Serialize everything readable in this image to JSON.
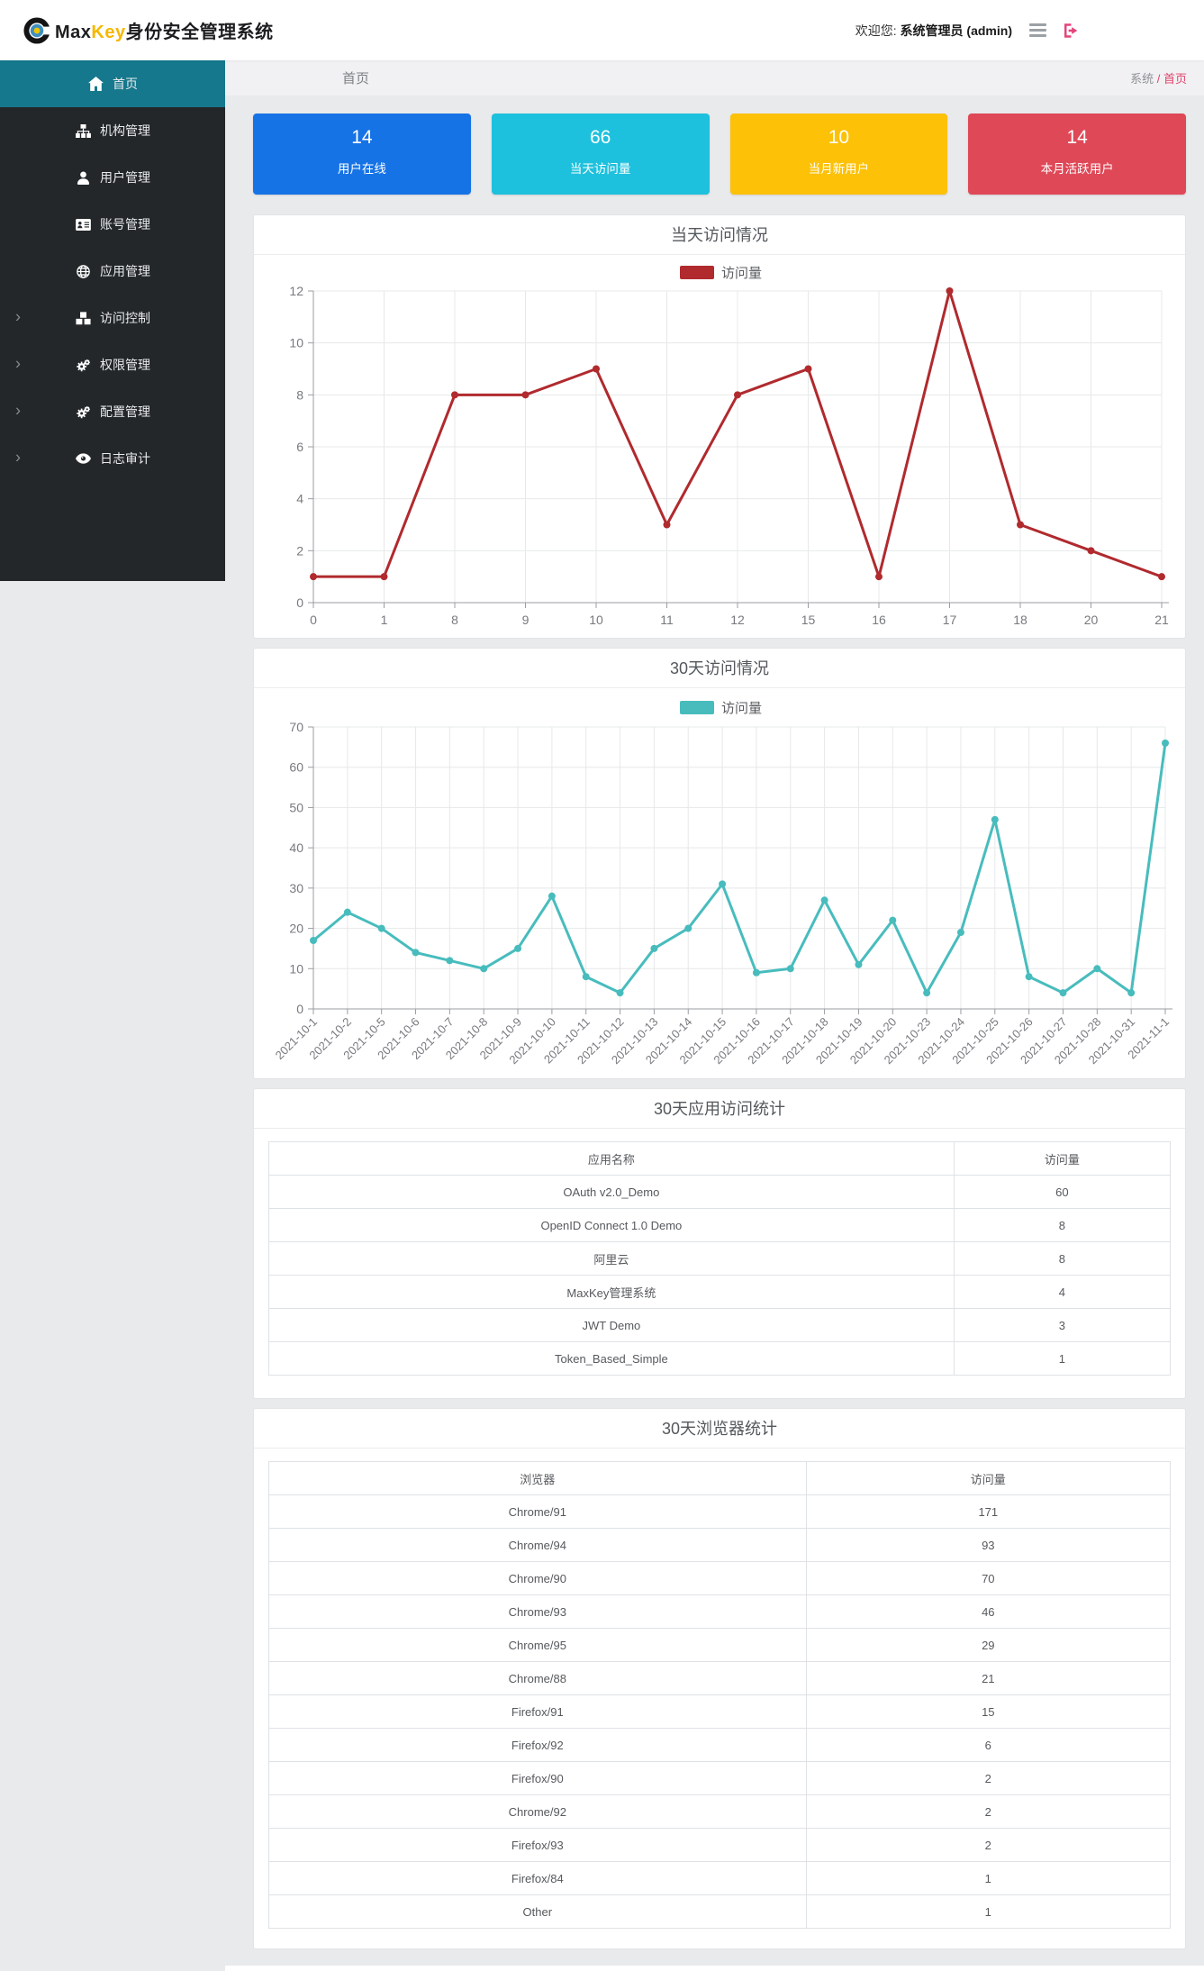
{
  "header": {
    "brand": {
      "part1": "Max",
      "part2": "Key",
      "part3": "身份安全管理系统"
    },
    "welcome_label": "欢迎您:",
    "user": "系统管理员 (admin)"
  },
  "breadcrumb": {
    "page_title": "首页",
    "crumb_root": "系统",
    "crumb_separator": "/",
    "crumb_current": "首页"
  },
  "sidebar": {
    "items": [
      {
        "id": "home",
        "label": "首页",
        "icon": "home-icon",
        "active": true,
        "expandable": false
      },
      {
        "id": "organizations",
        "label": "机构管理",
        "icon": "sitemap-icon",
        "active": false,
        "expandable": false
      },
      {
        "id": "users",
        "label": "用户管理",
        "icon": "user-icon",
        "active": false,
        "expandable": false
      },
      {
        "id": "accounts",
        "label": "账号管理",
        "icon": "idcard-icon",
        "active": false,
        "expandable": false
      },
      {
        "id": "applications",
        "label": "应用管理",
        "icon": "globe-icon",
        "active": false,
        "expandable": false
      },
      {
        "id": "access-control",
        "label": "访问控制",
        "icon": "cubes-icon",
        "active": false,
        "expandable": true
      },
      {
        "id": "permissions",
        "label": "权限管理",
        "icon": "cogs-icon",
        "active": false,
        "expandable": true
      },
      {
        "id": "configuration",
        "label": "配置管理",
        "icon": "cogs-icon",
        "active": false,
        "expandable": true
      },
      {
        "id": "audit-log",
        "label": "日志审计",
        "icon": "eye-icon",
        "active": false,
        "expandable": true
      }
    ]
  },
  "stat_cards": [
    {
      "value": "14",
      "label": "用户在线",
      "color": "#1673e6"
    },
    {
      "value": "66",
      "label": "当天访问量",
      "color": "#1ec1dd"
    },
    {
      "value": "10",
      "label": "当月新用户",
      "color": "#fdc107"
    },
    {
      "value": "14",
      "label": "本月活跃用户",
      "color": "#df4857"
    }
  ],
  "chart_data": [
    {
      "type": "line",
      "title": "当天访问情况",
      "legend": "访问量",
      "legend_position": "top-center",
      "color": "#b02a2e",
      "categories": [
        "0",
        "1",
        "8",
        "9",
        "10",
        "11",
        "12",
        "15",
        "16",
        "17",
        "18",
        "20",
        "21"
      ],
      "values": [
        1,
        1,
        8,
        8,
        9,
        3,
        8,
        9,
        1,
        12,
        3,
        2,
        1
      ],
      "xlabel": "",
      "ylabel": "",
      "ylim": [
        0,
        12
      ],
      "ytick_step": 2,
      "grid": true,
      "rotate_labels": 0
    },
    {
      "type": "line",
      "title": "30天访问情况",
      "legend": "访问量",
      "legend_position": "top-center",
      "color": "#48bcbd",
      "categories": [
        "2021-10-1",
        "2021-10-2",
        "2021-10-5",
        "2021-10-6",
        "2021-10-7",
        "2021-10-8",
        "2021-10-9",
        "2021-10-10",
        "2021-10-11",
        "2021-10-12",
        "2021-10-13",
        "2021-10-14",
        "2021-10-15",
        "2021-10-16",
        "2021-10-17",
        "2021-10-18",
        "2021-10-19",
        "2021-10-20",
        "2021-10-23",
        "2021-10-24",
        "2021-10-25",
        "2021-10-26",
        "2021-10-27",
        "2021-10-28",
        "2021-10-31",
        "2021-11-1"
      ],
      "values": [
        17,
        24,
        20,
        14,
        12,
        10,
        15,
        28,
        8,
        4,
        15,
        20,
        31,
        9,
        10,
        27,
        11,
        22,
        4,
        19,
        47,
        8,
        4,
        10,
        4,
        66
      ],
      "xlabel": "",
      "ylabel": "",
      "ylim": [
        0,
        70
      ],
      "ytick_step": 10,
      "grid": true,
      "rotate_labels": 45
    }
  ],
  "app_table": {
    "title": "30天应用访问统计",
    "headers": [
      "应用名称",
      "访问量"
    ],
    "rows": [
      [
        "OAuth v2.0_Demo",
        "60"
      ],
      [
        "OpenID Connect 1.0 Demo",
        "8"
      ],
      [
        "阿里云",
        "8"
      ],
      [
        "MaxKey管理系统",
        "4"
      ],
      [
        "JWT Demo",
        "3"
      ],
      [
        "Token_Based_Simple",
        "1"
      ]
    ]
  },
  "browser_table": {
    "title": "30天浏览器统计",
    "headers": [
      "浏览器",
      "访问量"
    ],
    "rows": [
      [
        "Chrome/91",
        "171"
      ],
      [
        "Chrome/94",
        "93"
      ],
      [
        "Chrome/90",
        "70"
      ],
      [
        "Chrome/93",
        "46"
      ],
      [
        "Chrome/95",
        "29"
      ],
      [
        "Chrome/88",
        "21"
      ],
      [
        "Firefox/91",
        "15"
      ],
      [
        "Firefox/92",
        "6"
      ],
      [
        "Firefox/90",
        "2"
      ],
      [
        "Chrome/92",
        "2"
      ],
      [
        "Firefox/93",
        "2"
      ],
      [
        "Firefox/84",
        "1"
      ],
      [
        "Other",
        "1"
      ]
    ]
  }
}
